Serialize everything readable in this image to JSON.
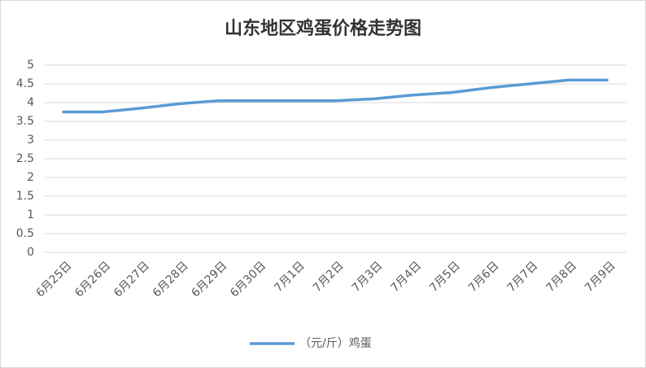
{
  "chart_data": {
    "type": "line",
    "title": "山东地区鸡蛋价格走势图",
    "categories": [
      "6月25日",
      "6月26日",
      "6月27日",
      "6月28日",
      "6月29日",
      "6月30日",
      "7月1日",
      "7月2日",
      "7月3日",
      "7月4日",
      "7月5日",
      "7月6日",
      "7月7日",
      "7月8日",
      "7月9日"
    ],
    "series": [
      {
        "name": "（元/斤）鸡蛋",
        "color": "#5b9bd5",
        "values": [
          3.75,
          3.75,
          3.85,
          3.97,
          4.05,
          4.05,
          4.05,
          4.05,
          4.1,
          4.2,
          4.27,
          4.4,
          4.5,
          4.6,
          4.6
        ]
      }
    ],
    "ylim": [
      0,
      5
    ],
    "yticks": [
      0,
      0.5,
      1,
      1.5,
      2,
      2.5,
      3,
      3.5,
      4,
      4.5,
      5
    ],
    "grid": true,
    "legend": "bottom"
  }
}
